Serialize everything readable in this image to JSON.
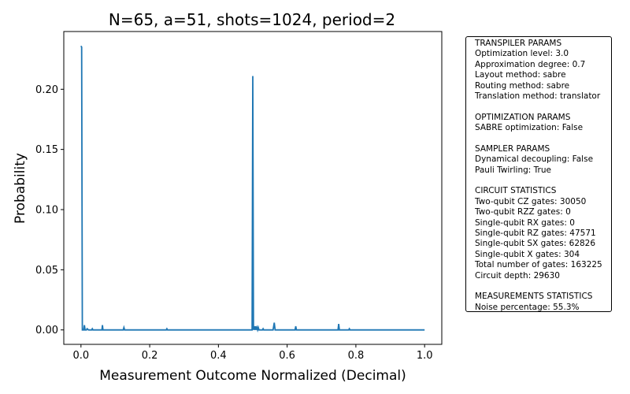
{
  "chart_data": {
    "type": "line",
    "title": "N=65, a=51, shots=1024, period=2",
    "xlabel": "Measurement Outcome Normalized (Decimal)",
    "ylabel": "Probability",
    "xlim": [
      -0.05,
      1.05
    ],
    "ylim": [
      -0.012,
      0.248
    ],
    "xticks": [
      {
        "value": 0.0,
        "label": "0.0"
      },
      {
        "value": 0.2,
        "label": "0.2"
      },
      {
        "value": 0.4,
        "label": "0.4"
      },
      {
        "value": 0.6,
        "label": "0.6"
      },
      {
        "value": 0.8,
        "label": "0.8"
      },
      {
        "value": 1.0,
        "label": "1.0"
      }
    ],
    "yticks": [
      {
        "value": 0.0,
        "label": "0.00"
      },
      {
        "value": 0.05,
        "label": "0.05"
      },
      {
        "value": 0.1,
        "label": "0.10"
      },
      {
        "value": 0.15,
        "label": "0.15"
      },
      {
        "value": 0.2,
        "label": "0.20"
      }
    ],
    "grid": false,
    "color": "#1f77b4",
    "series": [
      {
        "x": [
          0.0,
          0.002,
          0.004,
          0.008,
          0.01,
          0.012,
          0.016,
          0.018,
          0.022,
          0.024,
          0.031,
          0.033,
          0.035,
          0.061,
          0.0625,
          0.064,
          0.123,
          0.125,
          0.127,
          0.248,
          0.25,
          0.252,
          0.498,
          0.5,
          0.502,
          0.504,
          0.506,
          0.508,
          0.51,
          0.512,
          0.514,
          0.516,
          0.518,
          0.52,
          0.522,
          0.528,
          0.53,
          0.532,
          0.559,
          0.5625,
          0.565,
          0.623,
          0.625,
          0.627,
          0.748,
          0.75,
          0.752,
          0.779,
          0.781,
          0.783,
          1.0
        ],
        "y": [
          0.236,
          0.235,
          0.0,
          0.0,
          0.004,
          0.0,
          0.0,
          0.001,
          0.0,
          0.0,
          0.0,
          0.001,
          0.0,
          0.0,
          0.004,
          0.0,
          0.0,
          0.002,
          0.0,
          0.0,
          0.001,
          0.0,
          0.0,
          0.211,
          0.0,
          0.003,
          0.0,
          0.003,
          0.0,
          0.002,
          0.0,
          0.002,
          0.0,
          0.0,
          0.0,
          0.0,
          0.001,
          0.0,
          0.0,
          0.006,
          0.0,
          0.0,
          0.003,
          0.0,
          0.0,
          0.005,
          0.0,
          0.0,
          0.001,
          0.0,
          0.0
        ]
      }
    ]
  },
  "info_box": {
    "lines": [
      "TRANSPILER PARAMS",
      "Optimization level: 3.0",
      "Approximation degree: 0.7",
      "Layout method: sabre",
      "Routing method: sabre",
      "Translation method: translator",
      "",
      "OPTIMIZATION PARAMS",
      "SABRE optimization: False",
      "",
      "SAMPLER PARAMS",
      "Dynamical decoupling: False",
      "Pauli Twirling: True",
      "",
      "CIRCUIT STATISTICS",
      "Two-qubit CZ gates: 30050",
      "Two-qubit RZZ gates: 0",
      "Single-qubit RX gates: 0",
      "Single-qubit RZ gates: 47571",
      "Single-qubit SX gates: 62826",
      "Single-qubit X gates: 304",
      "Total number of gates: 163225",
      "Circuit depth: 29630",
      "",
      "MEASUREMENTS STATISTICS",
      "Noise percentage: 55.3%"
    ]
  }
}
